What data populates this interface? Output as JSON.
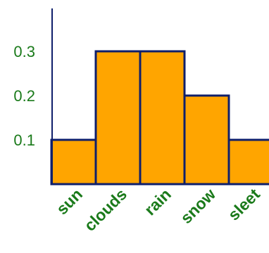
{
  "chart_data": {
    "type": "bar",
    "categories": [
      "sun",
      "clouds",
      "rain",
      "snow",
      "sleet"
    ],
    "values": [
      0.1,
      0.3,
      0.3,
      0.2,
      0.1
    ],
    "yticks": [
      "0.1",
      "0.2",
      "0.3"
    ],
    "ylim": [
      0,
      0.4
    ],
    "title": "",
    "xlabel": "",
    "ylabel": "",
    "grid": false,
    "colors": {
      "bar_fill": "#FFA500",
      "bar_stroke": "#0F1F6B",
      "axis": "#0F1F6B",
      "tick_label": "#1A7A1A",
      "category_label": "#1A7A1A"
    }
  }
}
